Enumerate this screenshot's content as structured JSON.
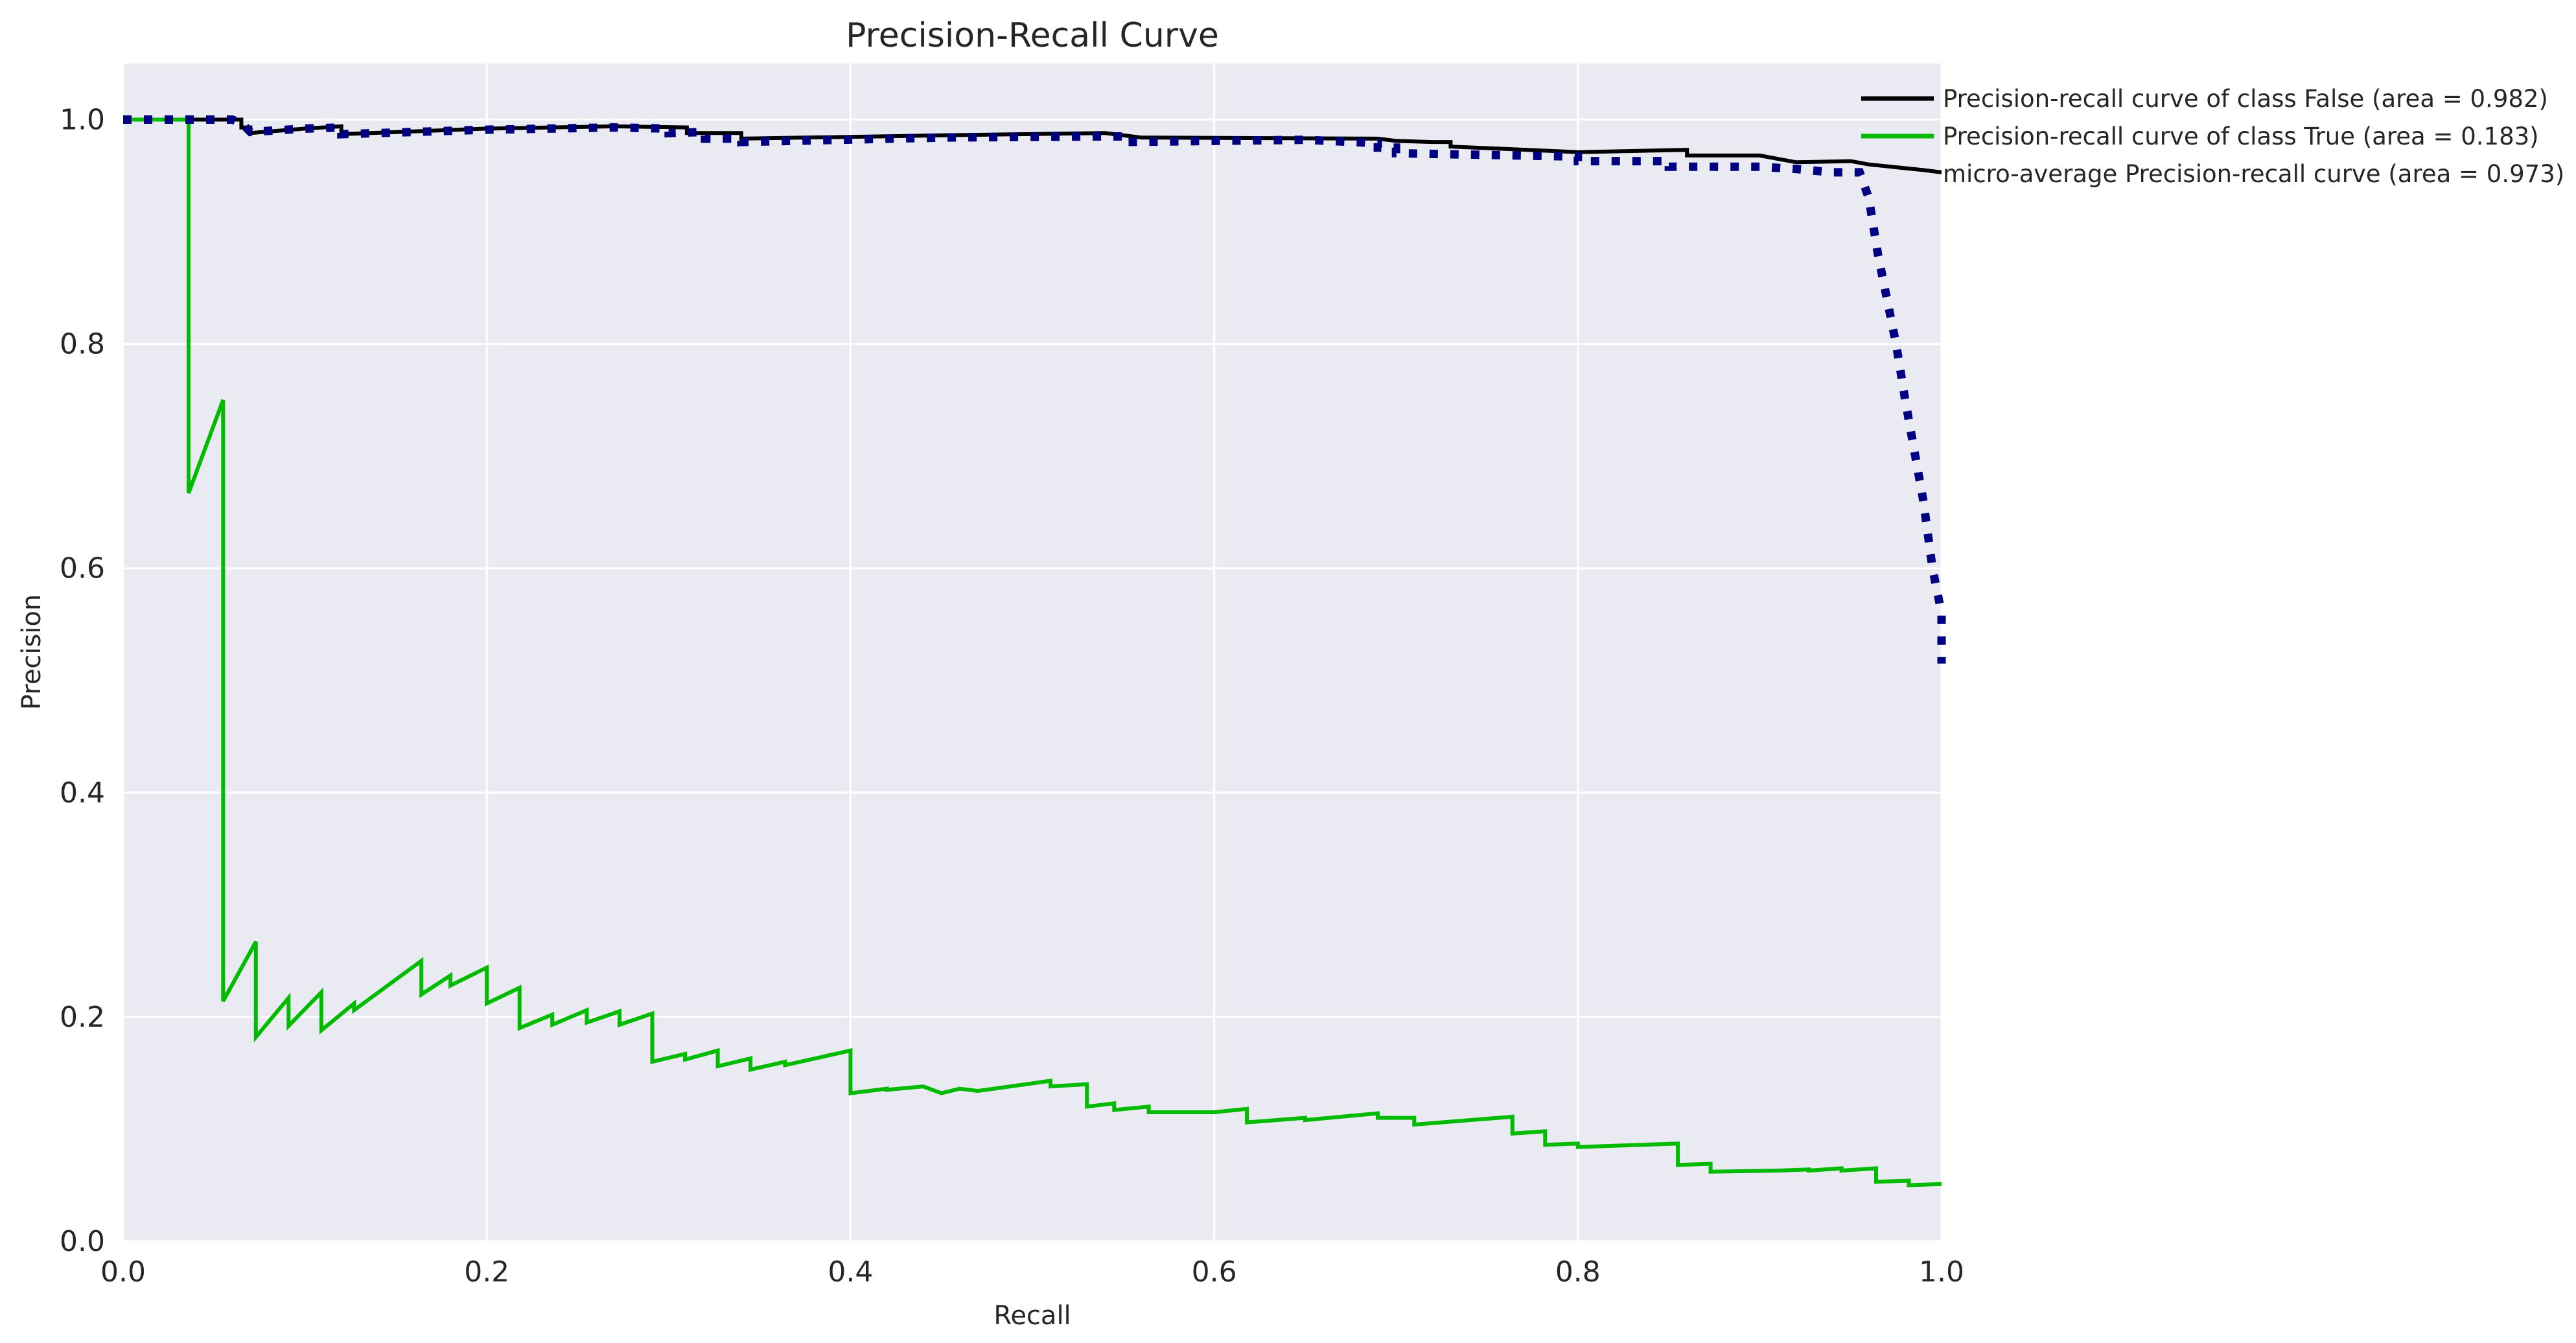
{
  "chart_data": {
    "type": "line",
    "title": "Precision-Recall Curve",
    "xlabel": "Recall",
    "ylabel": "Precision",
    "xlim": [
      0.0,
      1.0
    ],
    "ylim": [
      0.0,
      1.05
    ],
    "xticks": [
      0.0,
      0.2,
      0.4,
      0.6,
      0.8,
      1.0
    ],
    "xtick_labels": [
      "0.0",
      "0.2",
      "0.4",
      "0.6",
      "0.8",
      "1.0"
    ],
    "yticks": [
      0.0,
      0.2,
      0.4,
      0.6,
      0.8,
      1.0
    ],
    "ytick_labels": [
      "0.0",
      "0.2",
      "0.4",
      "0.6",
      "0.8",
      "1.0"
    ],
    "grid": true,
    "legend_position": "top-right",
    "background_color": "#eaeaf2",
    "grid_color": "#ffffff",
    "series": [
      {
        "name": "Precision-recall curve of class False (area = 0.982)",
        "color": "#000000",
        "style": "solid",
        "x": [
          0.0,
          0.065,
          0.065,
          0.07,
          0.07,
          0.1,
          0.12,
          0.12,
          0.2,
          0.27,
          0.31,
          0.31,
          0.34,
          0.34,
          0.45,
          0.54,
          0.54,
          0.56,
          0.56,
          0.69,
          0.7,
          0.72,
          0.73,
          0.73,
          0.8,
          0.86,
          0.86,
          0.9,
          0.92,
          0.95,
          0.96,
          0.99,
          1.0
        ],
        "y": [
          1.0,
          1.0,
          0.993,
          0.993,
          0.988,
          0.992,
          0.994,
          0.987,
          0.992,
          0.994,
          0.993,
          0.988,
          0.988,
          0.983,
          0.986,
          0.988,
          0.988,
          0.984,
          0.984,
          0.983,
          0.981,
          0.98,
          0.98,
          0.976,
          0.971,
          0.973,
          0.968,
          0.968,
          0.962,
          0.963,
          0.96,
          0.955,
          0.953
        ]
      },
      {
        "name": "Precision-recall curve of class True (area = 0.183)",
        "color": "#00bb00",
        "style": "solid",
        "x": [
          0.0,
          0.036,
          0.036,
          0.055,
          0.055,
          0.073,
          0.073,
          0.091,
          0.091,
          0.109,
          0.109,
          0.127,
          0.127,
          0.164,
          0.164,
          0.18,
          0.18,
          0.2,
          0.2,
          0.218,
          0.218,
          0.236,
          0.236,
          0.255,
          0.255,
          0.273,
          0.273,
          0.291,
          0.291,
          0.309,
          0.309,
          0.327,
          0.327,
          0.345,
          0.345,
          0.364,
          0.364,
          0.4,
          0.4,
          0.42,
          0.42,
          0.44,
          0.45,
          0.46,
          0.47,
          0.51,
          0.51,
          0.53,
          0.53,
          0.545,
          0.545,
          0.564,
          0.564,
          0.6,
          0.618,
          0.618,
          0.65,
          0.65,
          0.69,
          0.69,
          0.71,
          0.71,
          0.764,
          0.764,
          0.782,
          0.782,
          0.8,
          0.8,
          0.855,
          0.855,
          0.873,
          0.873,
          0.91,
          0.927,
          0.927,
          0.945,
          0.945,
          0.964,
          0.964,
          0.982,
          0.982,
          1.0
        ],
        "y": [
          1.0,
          1.0,
          0.667,
          0.75,
          0.214,
          0.267,
          0.182,
          0.217,
          0.192,
          0.222,
          0.188,
          0.212,
          0.206,
          0.25,
          0.22,
          0.237,
          0.228,
          0.244,
          0.212,
          0.226,
          0.19,
          0.202,
          0.193,
          0.206,
          0.195,
          0.205,
          0.193,
          0.203,
          0.16,
          0.167,
          0.162,
          0.17,
          0.156,
          0.163,
          0.153,
          0.16,
          0.157,
          0.17,
          0.132,
          0.136,
          0.135,
          0.138,
          0.132,
          0.136,
          0.134,
          0.143,
          0.138,
          0.14,
          0.12,
          0.123,
          0.117,
          0.12,
          0.115,
          0.115,
          0.118,
          0.106,
          0.11,
          0.108,
          0.114,
          0.11,
          0.11,
          0.104,
          0.111,
          0.096,
          0.098,
          0.086,
          0.087,
          0.084,
          0.087,
          0.068,
          0.069,
          0.062,
          0.063,
          0.064,
          0.063,
          0.065,
          0.063,
          0.065,
          0.053,
          0.054,
          0.05,
          0.051
        ]
      },
      {
        "name": "micro-average Precision-recall curve (area = 0.973)",
        "color": "#000080",
        "style": "dotted",
        "x": [
          0.0,
          0.06,
          0.065,
          0.07,
          0.1,
          0.12,
          0.12,
          0.2,
          0.27,
          0.3,
          0.3,
          0.32,
          0.32,
          0.34,
          0.34,
          0.45,
          0.54,
          0.55,
          0.55,
          0.6,
          0.65,
          0.69,
          0.69,
          0.7,
          0.7,
          0.8,
          0.8,
          0.85,
          0.85,
          0.9,
          0.92,
          0.94,
          0.955,
          0.96,
          0.965,
          0.975,
          0.98,
          0.99,
          0.995,
          1.0,
          1.0
        ],
        "y": [
          1.0,
          1.0,
          0.997,
          0.989,
          0.992,
          0.993,
          0.987,
          0.991,
          0.993,
          0.992,
          0.988,
          0.989,
          0.983,
          0.983,
          0.98,
          0.984,
          0.985,
          0.985,
          0.98,
          0.981,
          0.982,
          0.979,
          0.975,
          0.975,
          0.97,
          0.967,
          0.963,
          0.963,
          0.958,
          0.958,
          0.956,
          0.953,
          0.953,
          0.93,
          0.88,
          0.8,
          0.75,
          0.66,
          0.6,
          0.56,
          0.515
        ]
      }
    ]
  }
}
